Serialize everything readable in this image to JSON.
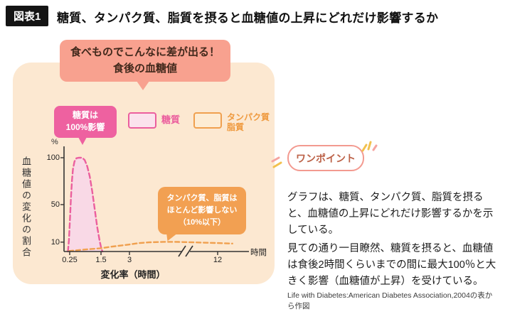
{
  "header": {
    "badge": "図表1",
    "title": "糖質、タンパク質、脂質を摂ると血糖値の上昇にどれだけ影響するか"
  },
  "speech_bubble": {
    "line1": "食べものでこんなに差が出る！",
    "line2": "食後の血糖値"
  },
  "chart_panel": {
    "carb_callout": {
      "line1": "糖質は",
      "line2": "100%影響"
    },
    "protein_callout": {
      "line1": "タンパク質、脂質は",
      "line2": "ほとんど影響しない",
      "line3": "（10%以下）"
    },
    "legend": {
      "carb_label": "糖質",
      "protein_label_line1": "タンパク質",
      "protein_label_line2": "脂質"
    },
    "y_axis_title": "血糖値の変化の割合",
    "x_axis_label": "変化率（時間）",
    "percent_unit": "%",
    "time_unit": "時間"
  },
  "one_point": {
    "label": "ワンポイント"
  },
  "description": {
    "para1": "グラフは、糖質、タンパク質、脂質を摂ると、血糖値の上昇にどれだけ影響するかを示している。",
    "para2": "見ての通り一目瞭然、糖質を摂ると、血糖値は食後2時間くらいまでの間に最大100％と大きく影響（血糖値が上昇）を受けている。",
    "source": "Life with Diabetes:American Diabetes Association,2004の表から作図"
  },
  "colors": {
    "panel_bg": "#fce8d1",
    "speech_bubble_bg": "#f8a18f",
    "carb_pink": "#eb5f9e",
    "protein_orange": "#f0a04f",
    "carb_callout_bg": "#ee61a0",
    "protein_callout_bg": "#f2a052",
    "badge_bg": "#141414"
  },
  "chart_data": {
    "type": "line",
    "title": "食べものでこんなに差が出る！食後の血糖値",
    "xlabel": "変化率（時間）",
    "ylabel": "血糖値の変化の割合",
    "x_unit": "時間",
    "y_unit": "%",
    "x_ticks": [
      0.25,
      1.5,
      3,
      12
    ],
    "x_axis_break_between": [
      3,
      12
    ],
    "y_ticks": [
      10,
      50,
      100
    ],
    "ylim": [
      0,
      110
    ],
    "grid": false,
    "legend_position": "top",
    "series": [
      {
        "name": "糖質",
        "color": "#eb5f9e",
        "fill_color": "#f9d9e6",
        "line_style": "dashed",
        "peak_percent": 100,
        "points": [
          [
            0.18,
            0
          ],
          [
            0.22,
            12
          ],
          [
            0.26,
            35
          ],
          [
            0.3,
            58
          ],
          [
            0.34,
            76
          ],
          [
            0.38,
            88
          ],
          [
            0.44,
            96
          ],
          [
            0.52,
            99.5
          ],
          [
            0.62,
            100
          ],
          [
            0.75,
            100
          ],
          [
            0.85,
            97.5
          ],
          [
            0.95,
            91
          ],
          [
            1.05,
            80
          ],
          [
            1.15,
            64
          ],
          [
            1.25,
            45
          ],
          [
            1.35,
            26
          ],
          [
            1.45,
            11
          ],
          [
            1.52,
            3
          ],
          [
            1.58,
            0
          ]
        ]
      },
      {
        "name": "タンパク質・脂質",
        "color": "#f0a04f",
        "line_style": "dashed",
        "max_percent": 10,
        "points": [
          [
            0.22,
            0.5
          ],
          [
            0.5,
            1.2
          ],
          [
            0.9,
            2.2
          ],
          [
            1.5,
            3.5
          ],
          [
            2.0,
            5
          ],
          [
            2.6,
            6.5
          ],
          [
            3.2,
            7.8
          ],
          [
            4.0,
            9
          ],
          [
            5.0,
            9.8
          ],
          [
            6.5,
            10.3
          ],
          [
            8.0,
            10.2
          ],
          [
            9.5,
            9.8
          ],
          [
            11,
            9.3
          ],
          [
            12,
            9
          ],
          [
            13.5,
            8.5
          ]
        ]
      }
    ]
  }
}
